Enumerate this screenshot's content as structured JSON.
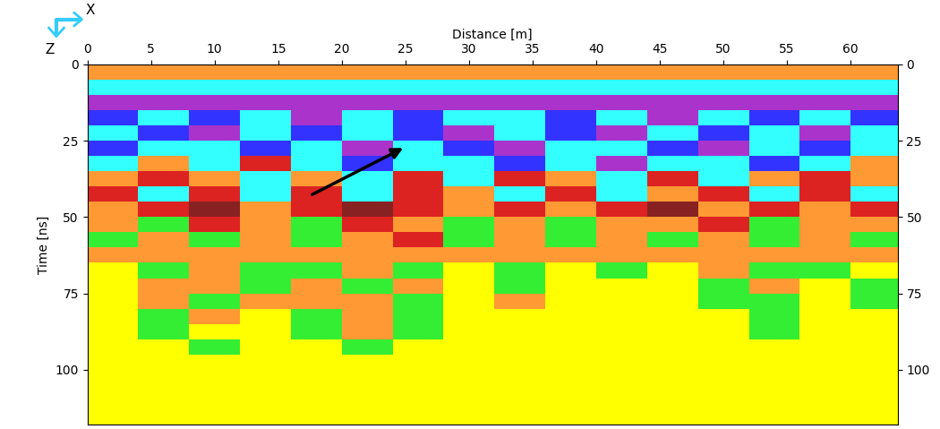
{
  "chart_data": {
    "type": "heatmap",
    "x_label": "Distance [m]",
    "y_label": "Time [ns]",
    "axis_letters": {
      "x": "X",
      "z": "Z"
    },
    "xlim": [
      0,
      63.7
    ],
    "ylim": [
      118,
      0
    ],
    "xticks": [
      0,
      5,
      10,
      15,
      20,
      25,
      30,
      35,
      40,
      45,
      50,
      55,
      60
    ],
    "yticks": [
      0,
      25,
      50,
      75,
      100
    ],
    "colors": [
      "#ffff00",
      "#33ee33",
      "#ff9933",
      "#dd2222",
      "#33ffff",
      "#3333ff",
      "#aa33cc",
      "#882222"
    ],
    "x_edges": [
      0,
      4,
      8,
      12,
      16,
      20,
      24,
      28,
      32,
      36,
      40,
      44,
      48,
      52,
      56,
      60,
      64
    ],
    "y_edges": [
      0,
      5,
      10,
      15,
      20,
      25,
      30,
      35,
      40,
      45,
      50,
      55,
      60,
      65,
      70,
      75,
      80,
      85,
      90,
      95,
      100,
      105,
      110,
      115,
      120
    ],
    "cells": [
      [
        2,
        2,
        2,
        2,
        2,
        2,
        2,
        2,
        2,
        2,
        2,
        2,
        2,
        2,
        2,
        2
      ],
      [
        4,
        4,
        4,
        4,
        4,
        4,
        4,
        4,
        4,
        4,
        4,
        4,
        4,
        4,
        4,
        4
      ],
      [
        6,
        6,
        6,
        6,
        6,
        6,
        6,
        6,
        6,
        6,
        6,
        6,
        6,
        6,
        6,
        6
      ],
      [
        5,
        4,
        5,
        4,
        6,
        4,
        5,
        4,
        4,
        5,
        4,
        6,
        4,
        5,
        4,
        5
      ],
      [
        4,
        5,
        6,
        4,
        5,
        4,
        5,
        6,
        4,
        5,
        6,
        4,
        5,
        4,
        6,
        4
      ],
      [
        5,
        4,
        4,
        5,
        4,
        6,
        4,
        5,
        6,
        4,
        4,
        5,
        6,
        4,
        5,
        4
      ],
      [
        4,
        2,
        4,
        3,
        4,
        5,
        4,
        4,
        5,
        4,
        6,
        4,
        4,
        5,
        4,
        2
      ],
      [
        2,
        3,
        2,
        4,
        2,
        4,
        3,
        4,
        3,
        2,
        4,
        3,
        4,
        2,
        3,
        2
      ],
      [
        3,
        4,
        3,
        4,
        3,
        4,
        3,
        2,
        4,
        3,
        4,
        2,
        3,
        4,
        3,
        4
      ],
      [
        2,
        3,
        7,
        2,
        3,
        7,
        3,
        2,
        3,
        2,
        3,
        7,
        2,
        3,
        2,
        3
      ],
      [
        2,
        1,
        3,
        2,
        1,
        3,
        2,
        1,
        2,
        1,
        2,
        2,
        3,
        1,
        2,
        2
      ],
      [
        1,
        2,
        1,
        2,
        1,
        2,
        3,
        1,
        2,
        1,
        2,
        1,
        2,
        1,
        2,
        1
      ],
      [
        2,
        2,
        2,
        2,
        2,
        2,
        2,
        2,
        2,
        2,
        2,
        2,
        2,
        2,
        2,
        2
      ],
      [
        0,
        1,
        2,
        1,
        1,
        2,
        1,
        0,
        1,
        0,
        1,
        0,
        2,
        1,
        1,
        0
      ],
      [
        0,
        2,
        2,
        1,
        2,
        1,
        2,
        0,
        1,
        0,
        0,
        0,
        1,
        2,
        0,
        1
      ],
      [
        0,
        2,
        1,
        2,
        2,
        2,
        1,
        0,
        2,
        0,
        0,
        0,
        1,
        1,
        0,
        1
      ],
      [
        0,
        1,
        2,
        0,
        1,
        2,
        1,
        0,
        0,
        0,
        0,
        0,
        0,
        1,
        0,
        0
      ],
      [
        0,
        1,
        0,
        0,
        1,
        2,
        1,
        0,
        0,
        0,
        0,
        0,
        0,
        1,
        0,
        0
      ],
      [
        0,
        0,
        1,
        0,
        0,
        1,
        0,
        0,
        0,
        0,
        0,
        0,
        0,
        0,
        0,
        0
      ],
      [
        0,
        0,
        0,
        0,
        0,
        0,
        0,
        0,
        0,
        0,
        0,
        0,
        0,
        0,
        0,
        0
      ],
      [
        0,
        0,
        0,
        0,
        0,
        0,
        0,
        0,
        0,
        0,
        0,
        0,
        0,
        0,
        0,
        0
      ],
      [
        0,
        0,
        0,
        0,
        0,
        0,
        0,
        0,
        0,
        0,
        0,
        0,
        0,
        0,
        0,
        0
      ],
      [
        0,
        0,
        0,
        0,
        0,
        0,
        0,
        0,
        0,
        0,
        0,
        0,
        0,
        0,
        0,
        0
      ],
      [
        0,
        0,
        0,
        0,
        0,
        0,
        0,
        0,
        0,
        0,
        0,
        0,
        0,
        0,
        0,
        0
      ]
    ],
    "arrows": [
      {
        "x": 25,
        "y": 27,
        "x_from": 17.5,
        "y_from": 43
      }
    ]
  }
}
